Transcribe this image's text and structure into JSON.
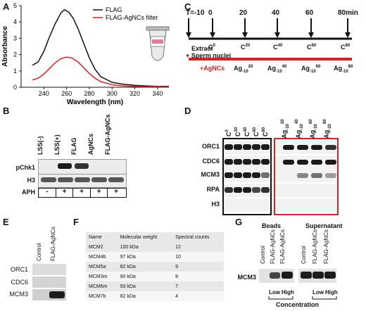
{
  "panels": {
    "a": "A",
    "b": "B",
    "c": "C",
    "d": "D",
    "e": "E",
    "f": "F",
    "g": "G"
  },
  "colors": {
    "flag": "#111111",
    "agnc": "#e02020",
    "blot_bg": "#ececec"
  },
  "panelA": {
    "ylabel": "Absorbance",
    "xlabel": "Wavelength (nm)",
    "legend": [
      "FLAG",
      "FLAG-AgNCs filter"
    ],
    "chart_data": {
      "type": "line",
      "title": "",
      "xlabel": "Wavelength (nm)",
      "ylabel": "Absorbance",
      "xlim": [
        220,
        350
      ],
      "ylim": [
        0,
        5
      ],
      "xticks": [
        240,
        260,
        280,
        300,
        320,
        340
      ],
      "yticks": [
        0,
        1,
        2,
        3,
        4,
        5
      ],
      "series": [
        {
          "name": "FLAG",
          "x": [
            230,
            235,
            240,
            245,
            250,
            255,
            258,
            262,
            266,
            270,
            275,
            280,
            285,
            290,
            300,
            310,
            320,
            330,
            340,
            350
          ],
          "y": [
            1.35,
            1.55,
            2.2,
            3.1,
            3.9,
            4.55,
            4.75,
            4.6,
            4.2,
            3.6,
            2.7,
            1.8,
            1.1,
            0.65,
            0.3,
            0.18,
            0.12,
            0.08,
            0.05,
            0.05
          ]
        },
        {
          "name": "FLAG-AgNCs filter",
          "x": [
            230,
            235,
            240,
            245,
            250,
            255,
            260,
            265,
            270,
            275,
            280,
            285,
            290,
            300,
            310,
            320,
            330,
            340,
            350
          ],
          "y": [
            0.45,
            0.55,
            0.8,
            1.15,
            1.5,
            1.75,
            1.85,
            1.78,
            1.55,
            1.2,
            0.85,
            0.55,
            0.35,
            0.15,
            0.08,
            0.05,
            0.04,
            0.03,
            0.03
          ]
        }
      ]
    }
  },
  "panelB": {
    "lanes": [
      "LSS(-)",
      "LSS(+)",
      "FLAG",
      "AgNCs",
      "FLAG-AgNCs"
    ],
    "rows": [
      "pChk1",
      "H3"
    ],
    "aph_label": "APH",
    "aph": [
      "-",
      "+",
      "+",
      "+",
      "+"
    ]
  },
  "panelC": {
    "times": [
      "T=-10",
      "0",
      "20",
      "40",
      "60",
      "80min"
    ],
    "extract_label": "Extract",
    "sperm_label": "+ Sperm nuclei",
    "c_labels": [
      {
        "b": "C",
        "s": "0"
      },
      {
        "b": "C",
        "s": "20"
      },
      {
        "b": "C",
        "s": "40"
      },
      {
        "b": "C",
        "s": "60"
      },
      {
        "b": "C",
        "s": "80"
      }
    ],
    "agnc_label": "+AgNCs",
    "ag_labels": [
      {
        "b": "Ag",
        "s": "-10",
        "p": "20"
      },
      {
        "b": "Ag",
        "s": "-10",
        "p": "40"
      },
      {
        "b": "Ag",
        "s": "-10",
        "p": "60"
      },
      {
        "b": "Ag",
        "s": "-10",
        "p": "80"
      }
    ]
  },
  "panelD": {
    "c_lanes": [
      {
        "b": "C",
        "p": "0"
      },
      {
        "b": "C",
        "p": "20"
      },
      {
        "b": "C",
        "p": "40"
      },
      {
        "b": "C",
        "p": "60"
      },
      {
        "b": "C",
        "p": "80"
      }
    ],
    "ag_lanes": [
      {
        "b": "Ag",
        "s": "-10",
        "p": "20"
      },
      {
        "b": "Ag",
        "s": "-10",
        "p": "40"
      },
      {
        "b": "Ag",
        "s": "-10",
        "p": "60"
      },
      {
        "b": "Ag",
        "s": "-10",
        "p": "80"
      }
    ],
    "rows": [
      "ORC1",
      "CDC6",
      "MCM3",
      "RPA",
      "H3"
    ]
  },
  "panelE": {
    "lanes": [
      "Control",
      "FLAG-AgNCs"
    ],
    "rows": [
      "ORC1",
      "CDC6",
      "MCM3"
    ]
  },
  "panelF": {
    "headers": [
      "Name",
      "Molecular weight",
      "Spectral counts"
    ],
    "rows": [
      [
        "MCM2",
        "100 kDa",
        "12"
      ],
      [
        "MCM4b",
        "97 kDa",
        "10"
      ],
      [
        "MCM5a",
        "82 kDa",
        "9"
      ],
      [
        "MCM3m",
        "90 kDa",
        "8"
      ],
      [
        "MCM6m",
        "93 kDa",
        "7"
      ],
      [
        "MCM7b",
        "82 kDa",
        "4"
      ]
    ]
  },
  "panelG": {
    "group1": "Beads",
    "group2": "Supernatant",
    "lanes": [
      "Control",
      "FLAG-AgNCs",
      "FLAG-AgNCs",
      "Control",
      "FLAG-AgNCs",
      "FLAG-AgNCs"
    ],
    "row": "MCM3",
    "low": "Low",
    "high": "High",
    "concentration": "Concentration"
  }
}
